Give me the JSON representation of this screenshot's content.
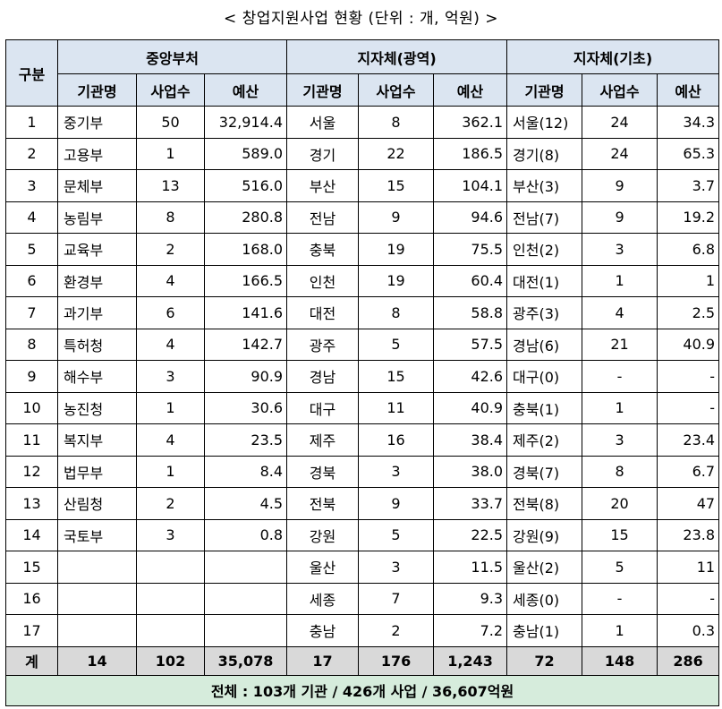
{
  "title": "< 창업지원사업 현황 (단위 : 개, 억원) >",
  "headers": {
    "gubun": "구분",
    "group_central": "중앙부처",
    "group_wide": "지자체(광역)",
    "group_basic": "지자체(기초)",
    "col_org": "기관명",
    "col_count": "사업수",
    "col_budget": "예산"
  },
  "rows": [
    {
      "no": "1",
      "c_org": "중기부",
      "c_cnt": "50",
      "c_bud": "32,914.4",
      "w_org": "서울",
      "w_cnt": "8",
      "w_bud": "362.1",
      "b_org": "서울(12)",
      "b_cnt": "24",
      "b_bud": "34.3"
    },
    {
      "no": "2",
      "c_org": "고용부",
      "c_cnt": "1",
      "c_bud": "589.0",
      "w_org": "경기",
      "w_cnt": "22",
      "w_bud": "186.5",
      "b_org": "경기(8)",
      "b_cnt": "24",
      "b_bud": "65.3"
    },
    {
      "no": "3",
      "c_org": "문체부",
      "c_cnt": "13",
      "c_bud": "516.0",
      "w_org": "부산",
      "w_cnt": "15",
      "w_bud": "104.1",
      "b_org": "부산(3)",
      "b_cnt": "9",
      "b_bud": "3.7"
    },
    {
      "no": "4",
      "c_org": "농림부",
      "c_cnt": "8",
      "c_bud": "280.8",
      "w_org": "전남",
      "w_cnt": "9",
      "w_bud": "94.6",
      "b_org": "전남(7)",
      "b_cnt": "9",
      "b_bud": "19.2"
    },
    {
      "no": "5",
      "c_org": "교육부",
      "c_cnt": "2",
      "c_bud": "168.0",
      "w_org": "충북",
      "w_cnt": "19",
      "w_bud": "75.5",
      "b_org": "인천(2)",
      "b_cnt": "3",
      "b_bud": "6.8"
    },
    {
      "no": "6",
      "c_org": "환경부",
      "c_cnt": "4",
      "c_bud": "166.5",
      "w_org": "인천",
      "w_cnt": "19",
      "w_bud": "60.4",
      "b_org": "대전(1)",
      "b_cnt": "1",
      "b_bud": "1"
    },
    {
      "no": "7",
      "c_org": "과기부",
      "c_cnt": "6",
      "c_bud": "141.6",
      "w_org": "대전",
      "w_cnt": "8",
      "w_bud": "58.8",
      "b_org": "광주(3)",
      "b_cnt": "4",
      "b_bud": "2.5"
    },
    {
      "no": "8",
      "c_org": "특허청",
      "c_cnt": "4",
      "c_bud": "142.7",
      "w_org": "광주",
      "w_cnt": "5",
      "w_bud": "57.5",
      "b_org": "경남(6)",
      "b_cnt": "21",
      "b_bud": "40.9"
    },
    {
      "no": "9",
      "c_org": "해수부",
      "c_cnt": "3",
      "c_bud": "90.9",
      "w_org": "경남",
      "w_cnt": "15",
      "w_bud": "42.6",
      "b_org": "대구(0)",
      "b_cnt": "-",
      "b_bud": "-"
    },
    {
      "no": "10",
      "c_org": "농진청",
      "c_cnt": "1",
      "c_bud": "30.6",
      "w_org": "대구",
      "w_cnt": "11",
      "w_bud": "40.9",
      "b_org": "충북(1)",
      "b_cnt": "1",
      "b_bud": "-"
    },
    {
      "no": "11",
      "c_org": "복지부",
      "c_cnt": "4",
      "c_bud": "23.5",
      "w_org": "제주",
      "w_cnt": "16",
      "w_bud": "38.4",
      "b_org": "제주(2)",
      "b_cnt": "3",
      "b_bud": "23.4"
    },
    {
      "no": "12",
      "c_org": "법무부",
      "c_cnt": "1",
      "c_bud": "8.4",
      "w_org": "경북",
      "w_cnt": "3",
      "w_bud": "38.0",
      "b_org": "경북(7)",
      "b_cnt": "8",
      "b_bud": "6.7"
    },
    {
      "no": "13",
      "c_org": "산림청",
      "c_cnt": "2",
      "c_bud": "4.5",
      "w_org": "전북",
      "w_cnt": "9",
      "w_bud": "33.7",
      "b_org": "전북(8)",
      "b_cnt": "20",
      "b_bud": "47"
    },
    {
      "no": "14",
      "c_org": "국토부",
      "c_cnt": "3",
      "c_bud": "0.8",
      "w_org": "강원",
      "w_cnt": "5",
      "w_bud": "22.5",
      "b_org": "강원(9)",
      "b_cnt": "15",
      "b_bud": "23.8"
    },
    {
      "no": "15",
      "c_org": "",
      "c_cnt": "",
      "c_bud": "",
      "w_org": "울산",
      "w_cnt": "3",
      "w_bud": "11.5",
      "b_org": "울산(2)",
      "b_cnt": "5",
      "b_bud": "11"
    },
    {
      "no": "16",
      "c_org": "",
      "c_cnt": "",
      "c_bud": "",
      "w_org": "세종",
      "w_cnt": "7",
      "w_bud": "9.3",
      "b_org": "세종(0)",
      "b_cnt": "-",
      "b_bud": "-"
    },
    {
      "no": "17",
      "c_org": "",
      "c_cnt": "",
      "c_bud": "",
      "w_org": "충남",
      "w_cnt": "2",
      "w_bud": "7.2",
      "b_org": "충남(1)",
      "b_cnt": "1",
      "b_bud": "0.3"
    }
  ],
  "sum": {
    "label": "계",
    "c_org": "14",
    "c_cnt": "102",
    "c_bud": "35,078",
    "w_org": "17",
    "w_cnt": "176",
    "w_bud": "1,243",
    "b_org": "72",
    "b_cnt": "148",
    "b_bud": "286"
  },
  "total": "전체 : 103개 기관 / 426개 사업 / 36,607억원"
}
